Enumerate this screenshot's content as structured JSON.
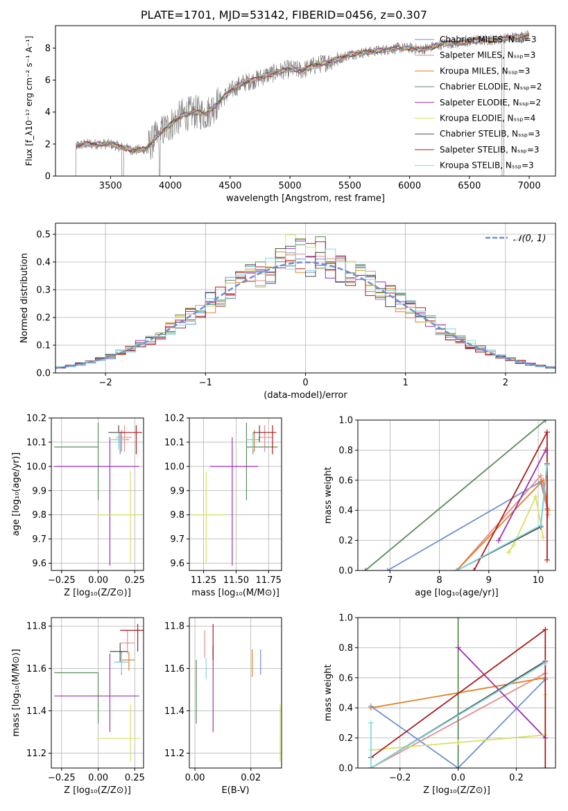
{
  "figure": {
    "title": "PLATE=1701, MJD=53142, FIBERID=0456, z=0.307"
  },
  "chart_data": [
    {
      "id": "spectrum",
      "type": "line",
      "xlabel": "wavelength [Angstrom, rest frame]",
      "ylabel": "Flux [f_λ10⁻¹⁷ erg cm⁻² s⁻¹ A⁻¹]",
      "xlim": [
        3040,
        7220
      ],
      "ylim": [
        0,
        9.4
      ],
      "xticks": [
        3500,
        4000,
        4500,
        5000,
        5500,
        6000,
        6500,
        7000
      ],
      "yticks": [
        0,
        2,
        4,
        6,
        8
      ],
      "grid": false,
      "legend_position": "right",
      "observed_anchor_points": [
        [
          3200,
          0
        ],
        [
          3215,
          1.9
        ],
        [
          3300,
          2.0
        ],
        [
          3400,
          2.0
        ],
        [
          3500,
          2.0
        ],
        [
          3600,
          1.8
        ],
        [
          3700,
          1.6
        ],
        [
          3800,
          1.7
        ],
        [
          3900,
          2.6
        ],
        [
          4000,
          3.2
        ],
        [
          4100,
          3.8
        ],
        [
          4200,
          4.0
        ],
        [
          4300,
          3.9
        ],
        [
          4400,
          4.6
        ],
        [
          4500,
          5.3
        ],
        [
          4600,
          5.8
        ],
        [
          4700,
          6.0
        ],
        [
          4800,
          6.3
        ],
        [
          4900,
          6.5
        ],
        [
          5000,
          6.7
        ],
        [
          5100,
          6.6
        ],
        [
          5200,
          6.9
        ],
        [
          5300,
          7.1
        ],
        [
          5400,
          7.3
        ],
        [
          5500,
          7.6
        ],
        [
          5600,
          7.7
        ],
        [
          5700,
          7.8
        ],
        [
          5800,
          7.9
        ],
        [
          5900,
          8.0
        ],
        [
          6000,
          8.0
        ],
        [
          6100,
          7.9
        ],
        [
          6200,
          8.1
        ],
        [
          6300,
          8.3
        ],
        [
          6400,
          8.3
        ],
        [
          6500,
          8.4
        ],
        [
          6600,
          8.5
        ],
        [
          6700,
          8.5
        ],
        [
          6800,
          8.6
        ],
        [
          6900,
          8.7
        ],
        [
          7000,
          8.8
        ]
      ],
      "series": [
        {
          "name": "Chabrier MILES, N_SSP=3",
          "color": "#6a8fd6"
        },
        {
          "name": "Salpeter MILES, N_SSP=3",
          "color": "#e68a8a"
        },
        {
          "name": "Kroupa MILES, N_SSP=3",
          "color": "#e08020"
        },
        {
          "name": "Chabrier ELODIE, N_SSP=2",
          "color": "#5a8a5a"
        },
        {
          "name": "Salpeter ELODIE, N_SSP=2",
          "color": "#9b30b0"
        },
        {
          "name": "Kroupa ELODIE, N_SSP=4",
          "color": "#d8e060"
        },
        {
          "name": "Chabrier STELIB, N_SSP=3",
          "color": "#4a4a4a"
        },
        {
          "name": "Salpeter STELIB, N_SSP=3",
          "color": "#b01818"
        },
        {
          "name": "Kroupa STELIB, N_SSP=3",
          "color": "#80d8e0"
        }
      ]
    },
    {
      "id": "residuals",
      "type": "area",
      "xlabel": "(data-model)/error",
      "ylabel": "Normed distribution",
      "xlim": [
        -2.5,
        2.5
      ],
      "ylim": [
        0,
        0.54
      ],
      "xticks": [
        -2,
        -1,
        0,
        1,
        2
      ],
      "yticks": [
        0.0,
        0.1,
        0.2,
        0.3,
        0.4,
        0.5
      ],
      "grid": true,
      "legend": "𝒩(0, 1)",
      "legend_position": "top-right",
      "gaussian": {
        "mu": 0,
        "sigma": 1,
        "color": "#6a8fd6"
      }
    },
    {
      "id": "age_vs_Z",
      "type": "scatter",
      "xlabel": "Z [log₁₀(Z/Z⊙)]",
      "ylabel": "age  [log₁₀(age/yr)]",
      "xlim": [
        -0.32,
        0.31
      ],
      "ylim": [
        9.57,
        10.2
      ],
      "xticks": [
        -0.25,
        0.0,
        0.25
      ],
      "yticks": [
        9.6,
        9.7,
        9.8,
        9.9,
        10.0,
        10.1,
        10.2
      ],
      "grid": true,
      "points": [
        {
          "x": 0.15,
          "y": 10.11,
          "xerr": [
            0.05,
            0.05
          ],
          "yerr": [
            0.06,
            0.03
          ],
          "color": "#6a8fd6"
        },
        {
          "x": 0.18,
          "y": 10.12,
          "xerr": [
            0.06,
            0.05
          ],
          "yerr": [
            0.06,
            0.05
          ],
          "color": "#e68a8a"
        },
        {
          "x": 0.16,
          "y": 10.11,
          "xerr": [
            0.05,
            0.05
          ],
          "yerr": [
            0.05,
            0.04
          ],
          "color": "#e08020"
        },
        {
          "x": 0.0,
          "y": 10.08,
          "xerr": [
            0.3,
            0.0
          ],
          "yerr": [
            0.22,
            0.1
          ],
          "color": "#5a8a5a"
        },
        {
          "x": 0.08,
          "y": 10.0,
          "xerr": [
            0.38,
            0.2
          ],
          "yerr": [
            0.41,
            0.12
          ],
          "color": "#9b30b0"
        },
        {
          "x": 0.22,
          "y": 9.8,
          "xerr": [
            0.23,
            0.07
          ],
          "yerr": [
            0.2,
            0.18
          ],
          "color": "#d8e060"
        },
        {
          "x": 0.14,
          "y": 10.14,
          "xerr": [
            0.07,
            0.05
          ],
          "yerr": [
            0.04,
            0.03
          ],
          "color": "#4a4a4a"
        },
        {
          "x": 0.26,
          "y": 10.14,
          "xerr": [
            0.12,
            0.04
          ],
          "yerr": [
            0.09,
            0.03
          ],
          "color": "#b01818"
        },
        {
          "x": 0.14,
          "y": 10.11,
          "xerr": [
            0.06,
            0.05
          ],
          "yerr": [
            0.04,
            0.03
          ],
          "color": "#80d8e0"
        }
      ]
    },
    {
      "id": "age_vs_mass",
      "type": "scatter",
      "xlabel": "mass [log₁₀(M/M⊙)]",
      "ylabel": "",
      "xlim": [
        11.14,
        11.85
      ],
      "ylim": [
        9.57,
        10.2
      ],
      "xticks": [
        11.25,
        11.5,
        11.75
      ],
      "yticks": [
        9.6,
        9.7,
        9.8,
        9.9,
        10.0,
        10.1,
        10.2
      ],
      "grid": true,
      "points": [
        {
          "x": 11.63,
          "y": 10.11,
          "xerr": [
            0.05,
            0.05
          ],
          "yerr": [
            0.06,
            0.03
          ],
          "color": "#6a8fd6"
        },
        {
          "x": 11.72,
          "y": 10.12,
          "xerr": [
            0.05,
            0.06
          ],
          "yerr": [
            0.06,
            0.05
          ],
          "color": "#e68a8a"
        },
        {
          "x": 11.64,
          "y": 10.11,
          "xerr": [
            0.04,
            0.04
          ],
          "yerr": [
            0.05,
            0.04
          ],
          "color": "#e08020"
        },
        {
          "x": 11.58,
          "y": 10.08,
          "xerr": [
            0.0,
            0.24
          ],
          "yerr": [
            0.22,
            0.1
          ],
          "color": "#5a8a5a"
        },
        {
          "x": 11.47,
          "y": 10.0,
          "xerr": [
            0.17,
            0.2
          ],
          "yerr": [
            0.41,
            0.12
          ],
          "color": "#9b30b0"
        },
        {
          "x": 11.27,
          "y": 9.8,
          "xerr": [
            0.1,
            0.16
          ],
          "yerr": [
            0.2,
            0.18
          ],
          "color": "#d8e060"
        },
        {
          "x": 11.68,
          "y": 10.14,
          "xerr": [
            0.05,
            0.04
          ],
          "yerr": [
            0.04,
            0.03
          ],
          "color": "#4a4a4a"
        },
        {
          "x": 11.78,
          "y": 10.14,
          "xerr": [
            0.1,
            0.03
          ],
          "yerr": [
            0.09,
            0.03
          ],
          "color": "#b01818"
        },
        {
          "x": 11.63,
          "y": 10.11,
          "xerr": [
            0.05,
            0.04
          ],
          "yerr": [
            0.04,
            0.03
          ],
          "color": "#80d8e0"
        }
      ]
    },
    {
      "id": "massweight_vs_age",
      "type": "line",
      "xlabel": "age  [log₁₀(age/yr)]",
      "ylabel": "mass weight",
      "xlim": [
        6.35,
        10.35
      ],
      "ylim": [
        0.0,
        1.0
      ],
      "xticks": [
        7,
        8,
        9,
        10
      ],
      "yticks": [
        0.0,
        0.2,
        0.4,
        0.6,
        0.8,
        1.0
      ],
      "grid": true,
      "series": [
        {
          "color": "#6a8fd6",
          "points": [
            [
              6.95,
              0.0
            ],
            [
              10.05,
              0.59
            ],
            [
              10.18,
              0.41
            ]
          ]
        },
        {
          "color": "#e68a8a",
          "points": [
            [
              8.35,
              0.0
            ],
            [
              10.05,
              0.63
            ],
            [
              10.2,
              0.37
            ]
          ]
        },
        {
          "color": "#e08020",
          "points": [
            [
              8.35,
              0.0
            ],
            [
              10.1,
              0.6
            ],
            [
              10.2,
              0.4
            ]
          ]
        },
        {
          "color": "#5a8a5a",
          "points": [
            [
              6.5,
              0.0
            ],
            [
              10.15,
              1.0
            ]
          ]
        },
        {
          "color": "#9b30b0",
          "points": [
            [
              9.2,
              0.2
            ],
            [
              10.15,
              0.8
            ]
          ]
        },
        {
          "color": "#d8e060",
          "points": [
            [
              9.4,
              0.12
            ],
            [
              9.5,
              0.17
            ],
            [
              9.95,
              0.49
            ],
            [
              10.1,
              0.22
            ]
          ]
        },
        {
          "color": "#4a4a4a",
          "points": [
            [
              8.35,
              0.0
            ],
            [
              10.05,
              0.29
            ],
            [
              10.18,
              0.71
            ]
          ]
        },
        {
          "color": "#b01818",
          "points": [
            [
              8.7,
              0.0
            ],
            [
              10.18,
              0.92
            ],
            [
              10.18,
              0.07
            ]
          ]
        },
        {
          "color": "#80d8e0",
          "points": [
            [
              8.35,
              0.0
            ],
            [
              10.05,
              0.3
            ],
            [
              10.18,
              0.7
            ]
          ]
        }
      ]
    },
    {
      "id": "mass_vs_Z",
      "type": "scatter",
      "xlabel": "Z [log₁₀(Z/Z⊙)]",
      "ylabel": "mass [log₁₀(M/M⊙)]",
      "xlim": [
        -0.32,
        0.31
      ],
      "ylim": [
        11.13,
        11.84
      ],
      "xticks": [
        -0.25,
        0.0,
        0.25
      ],
      "yticks": [
        11.2,
        11.4,
        11.6,
        11.8
      ],
      "grid": true,
      "points": [
        {
          "x": 0.16,
          "y": 11.63,
          "xerr": [
            0.05,
            0.05
          ],
          "yerr": [
            0.06,
            0.05
          ],
          "color": "#6a8fd6"
        },
        {
          "x": 0.2,
          "y": 11.72,
          "xerr": [
            0.05,
            0.05
          ],
          "yerr": [
            0.05,
            0.06
          ],
          "color": "#e68a8a"
        },
        {
          "x": 0.21,
          "y": 11.64,
          "xerr": [
            0.05,
            0.04
          ],
          "yerr": [
            0.05,
            0.04
          ],
          "color": "#e08020"
        },
        {
          "x": 0.0,
          "y": 11.58,
          "xerr": [
            0.3,
            0.0
          ],
          "yerr": [
            0.24,
            0.0
          ],
          "color": "#5a8a5a"
        },
        {
          "x": 0.08,
          "y": 11.47,
          "xerr": [
            0.38,
            0.2
          ],
          "yerr": [
            0.17,
            0.2
          ],
          "color": "#9b30b0"
        },
        {
          "x": 0.22,
          "y": 11.27,
          "xerr": [
            0.23,
            0.07
          ],
          "yerr": [
            0.11,
            0.16
          ],
          "color": "#d8e060"
        },
        {
          "x": 0.15,
          "y": 11.68,
          "xerr": [
            0.07,
            0.05
          ],
          "yerr": [
            0.05,
            0.04
          ],
          "color": "#4a4a4a"
        },
        {
          "x": 0.27,
          "y": 11.78,
          "xerr": [
            0.12,
            0.04
          ],
          "yerr": [
            0.1,
            0.03
          ],
          "color": "#b01818"
        },
        {
          "x": 0.16,
          "y": 11.63,
          "xerr": [
            0.05,
            0.05
          ],
          "yerr": [
            0.05,
            0.04
          ],
          "color": "#80d8e0"
        }
      ]
    },
    {
      "id": "mass_vs_ebv",
      "type": "scatter",
      "xlabel": "E(B-V)",
      "ylabel": "",
      "xlim": [
        -0.002,
        0.031
      ],
      "ylim": [
        11.13,
        11.84
      ],
      "xticks": [
        0.0,
        0.02
      ],
      "yticks": [
        11.2,
        11.4,
        11.6,
        11.8
      ],
      "grid": true,
      "points": [
        {
          "x": 0.0235,
          "y": 11.63,
          "yerr": [
            0.06,
            0.06
          ],
          "color": "#6a8fd6"
        },
        {
          "x": 0.0035,
          "y": 11.7,
          "yerr": [
            0.05,
            0.08
          ],
          "color": "#e68a8a"
        },
        {
          "x": 0.0205,
          "y": 11.62,
          "yerr": [
            0.06,
            0.07
          ],
          "color": "#e08020"
        },
        {
          "x": 0.0005,
          "y": 11.48,
          "yerr": [
            0.14,
            0.16
          ],
          "color": "#5a8a5a"
        },
        {
          "x": 0.0065,
          "y": 11.47,
          "yerr": [
            0.17,
            0.2
          ],
          "color": "#9b30b0"
        },
        {
          "x": 0.0305,
          "y": 11.3,
          "yerr": [
            0.14,
            0.13
          ],
          "color": "#d8e060"
        },
        {
          "x": 0.0065,
          "y": 11.68,
          "yerr": [
            0.02,
            0.03
          ],
          "color": "#4a4a4a"
        },
        {
          "x": 0.0065,
          "y": 11.7,
          "yerr": [
            0.06,
            0.11
          ],
          "color": "#b01818"
        },
        {
          "x": 0.004,
          "y": 11.6,
          "yerr": [
            0.05,
            0.05
          ],
          "color": "#80d8e0"
        }
      ]
    },
    {
      "id": "massweight_vs_Z",
      "type": "line",
      "xlabel": "Z [log₁₀(Z/Z⊙)]",
      "ylabel": "mass weight",
      "xlim": [
        -0.345,
        0.335
      ],
      "ylim": [
        0.0,
        1.0
      ],
      "xticks": [
        -0.2,
        0.0,
        0.2
      ],
      "yticks": [
        0.0,
        0.2,
        0.4,
        0.6,
        0.8,
        1.0
      ],
      "grid": true,
      "series": [
        {
          "color": "#6a8fd6",
          "points": [
            [
              -0.3,
              0.41
            ],
            [
              0.0,
              0.0
            ],
            [
              0.3,
              0.59
            ]
          ]
        },
        {
          "color": "#e68a8a",
          "points": [
            [
              -0.3,
              0.0
            ],
            [
              0.3,
              0.63
            ]
          ]
        },
        {
          "color": "#e08020",
          "points": [
            [
              -0.3,
              0.4
            ],
            [
              0.3,
              0.6
            ]
          ]
        },
        {
          "color": "#5a8a5a",
          "points": [
            [
              0.0,
              0.0
            ],
            [
              0.0,
              1.0
            ]
          ]
        },
        {
          "color": "#9b30b0",
          "points": [
            [
              0.0,
              0.8
            ],
            [
              0.3,
              0.2
            ]
          ]
        },
        {
          "color": "#d8e060",
          "points": [
            [
              -0.3,
              0.12
            ],
            [
              0.0,
              0.17
            ],
            [
              0.3,
              0.22
            ],
            [
              0.3,
              0.49
            ]
          ]
        },
        {
          "color": "#4a4a4a",
          "points": [
            [
              -0.3,
              0.0
            ],
            [
              0.3,
              0.71
            ]
          ]
        },
        {
          "color": "#b01818",
          "points": [
            [
              -0.3,
              0.07
            ],
            [
              0.3,
              0.92
            ],
            [
              0.3,
              0.0
            ]
          ]
        },
        {
          "color": "#80d8e0",
          "points": [
            [
              -0.3,
              0.3
            ],
            [
              -0.3,
              0.0
            ],
            [
              0.3,
              0.7
            ]
          ]
        }
      ]
    }
  ]
}
